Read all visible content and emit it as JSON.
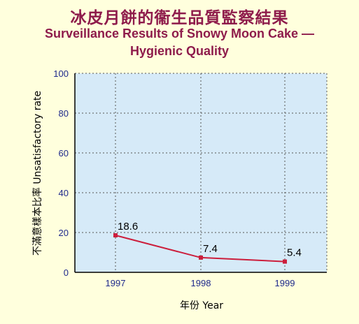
{
  "title_zh": "冰皮月餅的衞生品質監察結果",
  "title_en_line1": "Surveillance Results of Snowy Moon Cake —",
  "title_en_line2": "Hygienic Quality",
  "colors": {
    "plot_bg": "#D6EAF8",
    "line": "#CC1E3C",
    "title": "#8E1B4B",
    "tick": "#1F2A8C"
  },
  "chart_data": {
    "type": "line",
    "title": "Surveillance Results of Snowy Moon Cake — Hygienic Quality",
    "categories": [
      "1997",
      "1998",
      "1999"
    ],
    "series": [
      {
        "values": [
          18.6,
          7.4,
          5.4
        ]
      }
    ],
    "data_labels": [
      "18.6",
      "7.4",
      "5.4"
    ],
    "ylim": [
      0,
      100
    ],
    "yticks": [
      0,
      20,
      40,
      60,
      80,
      100
    ],
    "ylabel": "不滿意樣本比率  Unsatisfactory rate",
    "xlabel": "年份  Year",
    "grid": true,
    "gridlines": "dotted"
  }
}
